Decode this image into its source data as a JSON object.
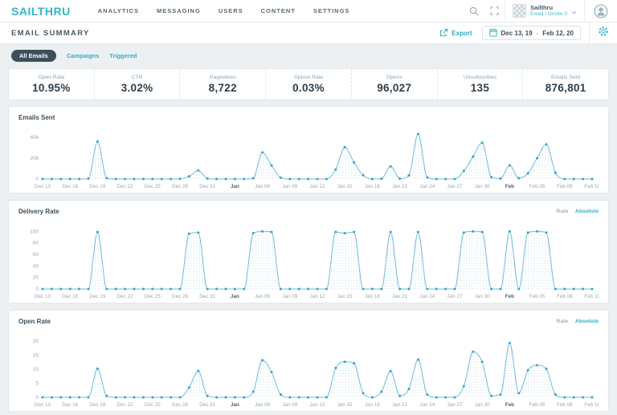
{
  "brand": {
    "logo": "SAILTHRU"
  },
  "nav": {
    "items": [
      "ANALYTICS",
      "MESSAGING",
      "USERS",
      "CONTENT",
      "SETTINGS"
    ]
  },
  "account": {
    "name": "Sailthru",
    "sub": "Email / Onsite 0"
  },
  "header": {
    "title": "EMAIL SUMMARY",
    "export_label": "Export",
    "date_start": "Dec 13, 19",
    "date_sep": "-",
    "date_end": "Feb 12, 20"
  },
  "filters": [
    {
      "label": "All Emails",
      "active": true
    },
    {
      "label": "Campaigns",
      "active": false
    },
    {
      "label": "Triggered",
      "active": false
    }
  ],
  "stats": [
    {
      "label": "Open Rate",
      "value": "10.95%"
    },
    {
      "label": "CTR",
      "value": "3.02%"
    },
    {
      "label": "Pageviews",
      "value": "8,722"
    },
    {
      "label": "Optout Rate",
      "value": "0.03%"
    },
    {
      "label": "Opens",
      "value": "96,027"
    },
    {
      "label": "Unsubscribes",
      "value": "135"
    },
    {
      "label": "Emails Sent",
      "value": "876,801"
    }
  ],
  "icons": {
    "search": "magnifier",
    "expand": "fullscreen-corners",
    "chevron": "chevron-down",
    "avatar": "person-circle",
    "export": "arrow-out-of-box",
    "calendar": "calendar",
    "gear": "gear"
  },
  "colors": {
    "accent": "#35b2c6",
    "line": "#72bdda",
    "marker": "#3ba1c8",
    "area_dot": "#b5d9ea",
    "tick": "#9aa7ae",
    "tick_bold": "#4e5e67",
    "chip_active_bg": "#3d4f5b"
  },
  "chart_data": [
    {
      "type": "area",
      "title": "Emails Sent",
      "x_interval": "daily",
      "x_start": "Dec 13",
      "x_end": "Feb 11",
      "xtick_labels": [
        "Dec 13",
        "Dec 16",
        "Dec 19",
        "Dec 22",
        "Dec 25",
        "Dec 28",
        "Dec 31",
        "Jan",
        "Jan 06",
        "Jan 09",
        "Jan 12",
        "Jan 15",
        "Jan 18",
        "Jan 21",
        "Jan 24",
        "Jan 27",
        "Jan 30",
        "Feb",
        "Feb 05",
        "Feb 08",
        "Feb 11"
      ],
      "values": [
        0,
        0,
        0,
        0,
        0,
        400,
        36000,
        800,
        0,
        0,
        0,
        0,
        0,
        0,
        0,
        200,
        2500,
        8200,
        400,
        0,
        0,
        0,
        0,
        700,
        25500,
        13000,
        1200,
        0,
        0,
        0,
        0,
        0,
        9000,
        30500,
        16000,
        3800,
        0,
        300,
        12200,
        400,
        3500,
        43200,
        1500,
        0,
        0,
        0,
        7800,
        21500,
        34800,
        1800,
        400,
        13200,
        800,
        5500,
        20000,
        33400,
        6000,
        0,
        0,
        0,
        0
      ],
      "yticks": [
        {
          "label": "40k",
          "value": 40000
        },
        {
          "label": "20k",
          "value": 20000
        },
        {
          "label": "0",
          "value": 0
        }
      ],
      "ylim": [
        0,
        47000
      ],
      "grid": false,
      "legend": "none"
    },
    {
      "type": "area",
      "title": "Delivery Rate",
      "toggle": {
        "rate": "Rate",
        "absolute": "Absolute"
      },
      "x_interval": "daily",
      "x_start": "Dec 13",
      "x_end": "Feb 11",
      "xtick_labels": [
        "Dec 13",
        "Dec 16",
        "Dec 19",
        "Dec 22",
        "Dec 25",
        "Dec 28",
        "Dec 31",
        "Jan",
        "Jan 06",
        "Jan 09",
        "Jan 12",
        "Jan 15",
        "Jan 18",
        "Jan 21",
        "Jan 24",
        "Jan 27",
        "Jan 30",
        "Feb",
        "Feb 05",
        "Feb 08",
        "Feb 11"
      ],
      "values": [
        0,
        0,
        0,
        0,
        0,
        0,
        99,
        0,
        0,
        0,
        0,
        0,
        0,
        0,
        0,
        0,
        96,
        98,
        0,
        0,
        0,
        0,
        0,
        97,
        100,
        99,
        0,
        0,
        0,
        0,
        0,
        0,
        99,
        97,
        99,
        0,
        0,
        0,
        99,
        0,
        0,
        99,
        0,
        0,
        0,
        0,
        98,
        100,
        99,
        0,
        0,
        100,
        0,
        98,
        100,
        98,
        0,
        0,
        0,
        0,
        0
      ],
      "yticks": [
        {
          "label": "100",
          "value": 100
        },
        {
          "label": "80",
          "value": 80
        },
        {
          "label": "60",
          "value": 60
        },
        {
          "label": "40",
          "value": 40
        },
        {
          "label": "20",
          "value": 20
        },
        {
          "label": "0",
          "value": 0
        }
      ],
      "ylim": [
        0,
        113
      ],
      "grid": false,
      "legend": "none"
    },
    {
      "type": "area",
      "title": "Open Rate",
      "toggle": {
        "rate": "Rate",
        "absolute": "Absolute"
      },
      "x_interval": "daily",
      "x_start": "Dec 13",
      "x_end": "Feb 11",
      "xtick_labels": [
        "Dec 13",
        "Dec 16",
        "Dec 19",
        "Dec 22",
        "Dec 25",
        "Dec 28",
        "Dec 31",
        "Jan",
        "Jan 06",
        "Jan 09",
        "Jan 12",
        "Jan 15",
        "Jan 18",
        "Jan 21",
        "Jan 24",
        "Jan 27",
        "Jan 30",
        "Feb",
        "Feb 05",
        "Feb 08",
        "Feb 11"
      ],
      "values": [
        0,
        0,
        0,
        0,
        0,
        0,
        10.2,
        0.5,
        0,
        0,
        0,
        0,
        0,
        0,
        0,
        0,
        3.5,
        9.4,
        0.5,
        0,
        0,
        0,
        0,
        2,
        13.2,
        9,
        1,
        0,
        0,
        0,
        0,
        0,
        10.4,
        12.6,
        12.1,
        1.5,
        0,
        2,
        9.3,
        0.5,
        3,
        13.4,
        1,
        0,
        0,
        0,
        4,
        16.2,
        12.6,
        0.5,
        1,
        19.3,
        1.5,
        9.6,
        11.4,
        10.1,
        1,
        0,
        0,
        0,
        0
      ],
      "yticks": [
        {
          "label": "20",
          "value": 20
        },
        {
          "label": "15",
          "value": 15
        },
        {
          "label": "10",
          "value": 10
        },
        {
          "label": "5",
          "value": 5
        },
        {
          "label": "0",
          "value": 0
        }
      ],
      "ylim": [
        0,
        22.5
      ],
      "grid": false,
      "legend": "none"
    }
  ]
}
